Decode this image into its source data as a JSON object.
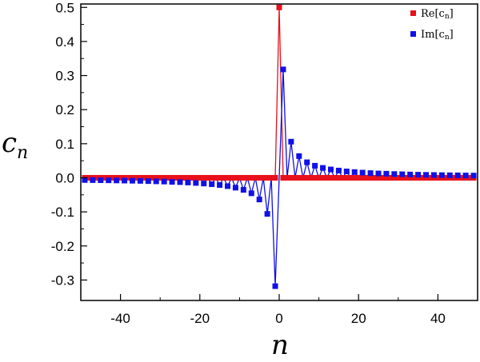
{
  "chart_data": {
    "type": "line",
    "title": "",
    "xlabel": "n",
    "ylabel": {
      "main": "c",
      "sub": "n"
    },
    "xlim": [
      -50,
      50
    ],
    "ylim": [
      -0.36,
      0.51
    ],
    "x_ticks": [
      -40,
      -20,
      0,
      20,
      40
    ],
    "x_tick_labels": [
      "-40",
      "-20",
      "0",
      "20",
      "40"
    ],
    "y_ticks": [
      -0.3,
      -0.2,
      -0.1,
      0.0,
      0.1,
      0.2,
      0.3,
      0.4,
      0.5
    ],
    "y_tick_labels": [
      "-0.3",
      "-0.2",
      "-0.1",
      "0.0",
      "0.1",
      "0.2",
      "0.3",
      "0.4",
      "0.5"
    ],
    "grid": false,
    "legend_position": "top-right",
    "x": [
      -49,
      -48,
      -47,
      -46,
      -45,
      -44,
      -43,
      -42,
      -41,
      -40,
      -39,
      -38,
      -37,
      -36,
      -35,
      -34,
      -33,
      -32,
      -31,
      -30,
      -29,
      -28,
      -27,
      -26,
      -25,
      -24,
      -23,
      -22,
      -21,
      -20,
      -19,
      -18,
      -17,
      -16,
      -15,
      -14,
      -13,
      -12,
      -11,
      -10,
      -9,
      -8,
      -7,
      -6,
      -5,
      -4,
      -3,
      -2,
      -1,
      0,
      1,
      2,
      3,
      4,
      5,
      6,
      7,
      8,
      9,
      10,
      11,
      12,
      13,
      14,
      15,
      16,
      17,
      18,
      19,
      20,
      21,
      22,
      23,
      24,
      25,
      26,
      27,
      28,
      29,
      30,
      31,
      32,
      33,
      34,
      35,
      36,
      37,
      38,
      39,
      40,
      41,
      42,
      43,
      44,
      45,
      46,
      47,
      48,
      49
    ],
    "series": [
      {
        "name": "Re[c",
        "name_sub": "n",
        "name_close": "]",
        "color": "#e8101a",
        "values": [
          0,
          0,
          0,
          0,
          0,
          0,
          0,
          0,
          0,
          0,
          0,
          0,
          0,
          0,
          0,
          0,
          0,
          0,
          0,
          0,
          0,
          0,
          0,
          0,
          0,
          0,
          0,
          0,
          0,
          0,
          0,
          0,
          0,
          0,
          0,
          0,
          0,
          0,
          0,
          0,
          0,
          0,
          0,
          0,
          0,
          0,
          0,
          0,
          0,
          0.5,
          0,
          0,
          0,
          0,
          0,
          0,
          0,
          0,
          0,
          0,
          0,
          0,
          0,
          0,
          0,
          0,
          0,
          0,
          0,
          0,
          0,
          0,
          0,
          0,
          0,
          0,
          0,
          0,
          0,
          0,
          0,
          0,
          0,
          0,
          0,
          0,
          0,
          0,
          0,
          0,
          0,
          0,
          0,
          0,
          0,
          0,
          0,
          0,
          0
        ]
      },
      {
        "name": "Im[c",
        "name_sub": "n",
        "name_close": "]",
        "color": "#1010e8",
        "values": [
          -0.0065,
          0,
          -0.0068,
          0,
          -0.0071,
          0,
          -0.0074,
          0,
          -0.0078,
          0,
          -0.0082,
          0,
          -0.0086,
          0,
          -0.0091,
          0,
          -0.0097,
          0,
          -0.0104,
          0,
          -0.011,
          0,
          -0.012,
          0,
          -0.0127,
          0,
          -0.0138,
          0,
          -0.0152,
          0,
          -0.0168,
          0,
          -0.0187,
          0,
          -0.0212,
          0,
          -0.0245,
          0,
          -0.029,
          0,
          -0.0354,
          0,
          -0.0455,
          0,
          -0.0637,
          0,
          -0.106,
          0,
          -0.318,
          0,
          0.318,
          0,
          0.106,
          0,
          0.0637,
          0,
          0.0455,
          0,
          0.0354,
          0,
          0.029,
          0,
          0.0245,
          0,
          0.0212,
          0,
          0.0187,
          0,
          0.0168,
          0,
          0.0152,
          0,
          0.0138,
          0,
          0.0127,
          0,
          0.012,
          0,
          0.011,
          0,
          0.0104,
          0,
          0.0097,
          0,
          0.0091,
          0,
          0.0086,
          0,
          0.0082,
          0,
          0.0078,
          0,
          0.0074,
          0,
          0.0071,
          0,
          0.0068,
          0,
          0.0065
        ]
      }
    ]
  }
}
